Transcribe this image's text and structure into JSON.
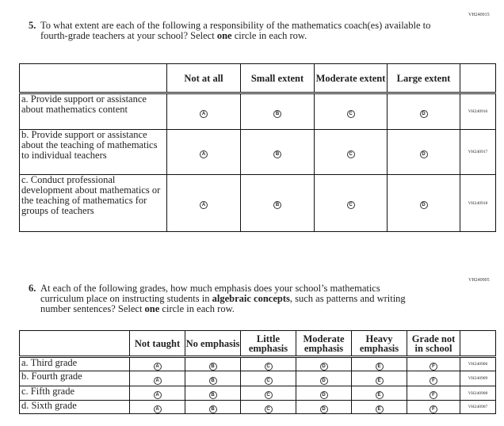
{
  "q5": {
    "code": "VH240915",
    "number": "5.",
    "text_html": "To what extent are each of the following a responsibility of the mathematics coach(es) available to fourth-grade teachers at your school? Select <b>one</b> circle in each row.",
    "columns": [
      "Not at all",
      "Small extent",
      "Moderate extent",
      "Large extent"
    ],
    "bubbles": [
      "A",
      "B",
      "C",
      "D"
    ],
    "rows": [
      {
        "label": "a. Provide support or assistance about mathematics content",
        "code": "VH240916"
      },
      {
        "label": "b. Provide support or assistance about the teaching of mathematics to individual teachers",
        "code": "VH240917"
      },
      {
        "label": "c. Conduct professional development about mathematics or the teaching of mathematics for groups of teachers",
        "code": "VH240918"
      }
    ]
  },
  "q6": {
    "code": "VH240905",
    "number": "6.",
    "text_html": "At each of the following grades, how much emphasis does your school’s mathematics curriculum place on instructing students in <b>algebraic concepts</b>, such as patterns and writing number sentences? Select <b>one</b> circle in each row.",
    "columns": [
      "Not taught",
      "No emphasis",
      "Little emphasis",
      "Moderate emphasis",
      "Heavy emphasis",
      "Grade not in school"
    ],
    "bubbles": [
      "A",
      "B",
      "C",
      "D",
      "E",
      "F"
    ],
    "rows": [
      {
        "label": "a. Third grade",
        "code": "VH240906"
      },
      {
        "label": "b. Fourth grade",
        "code": "VH240909"
      },
      {
        "label": "c. Fifth grade",
        "code": "VH240908"
      },
      {
        "label": "d. Sixth grade",
        "code": "VH240907"
      }
    ]
  }
}
